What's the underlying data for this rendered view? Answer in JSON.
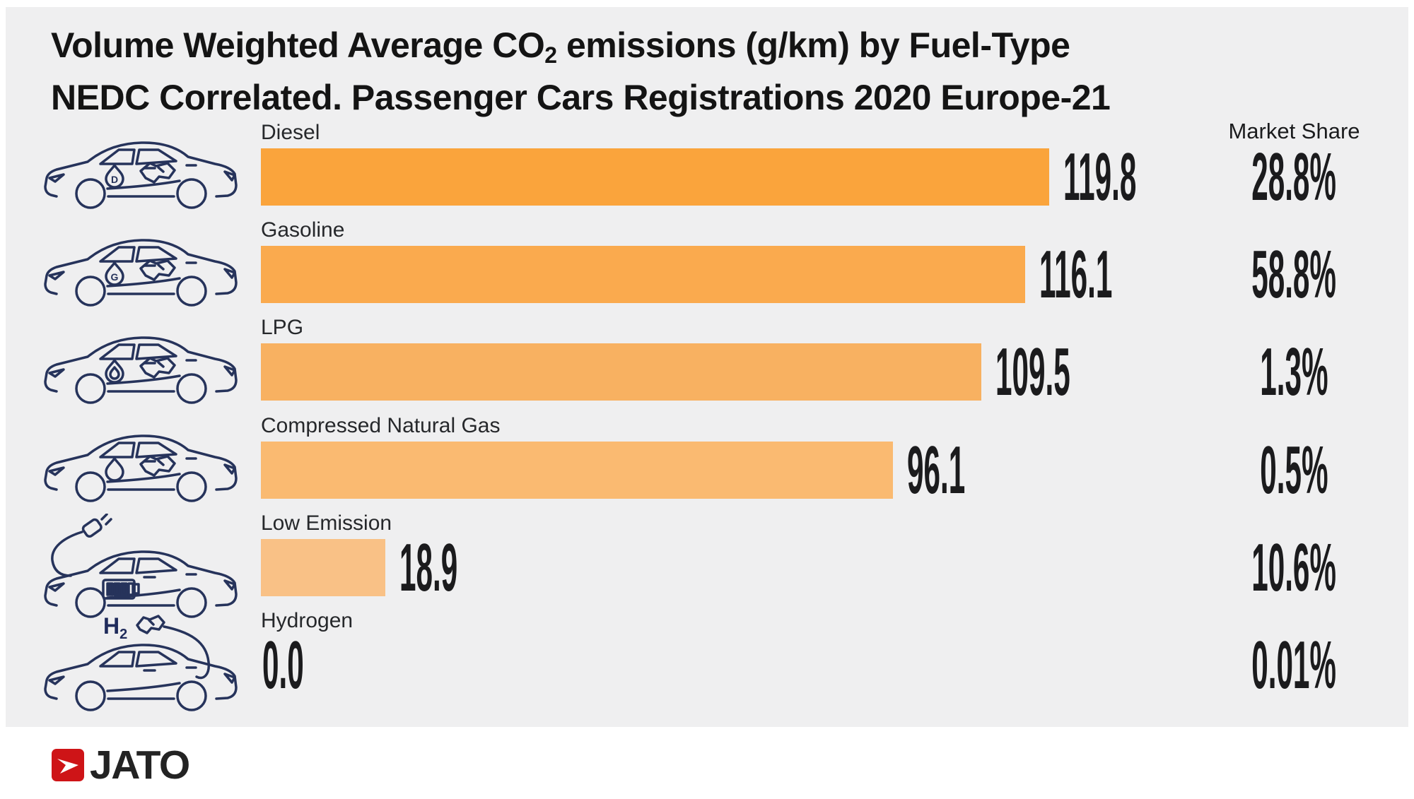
{
  "title": {
    "line1_pre": "Volume Weighted Average CO",
    "line1_sub": "2",
    "line1_post": " emissions (g/km) by Fuel-Type",
    "line2": "NEDC Correlated. Passenger Cars Registrations 2020 Europe-21"
  },
  "market_share_header": "Market Share",
  "chart_data": {
    "type": "bar",
    "orientation": "horizontal",
    "title": "Volume Weighted Average CO2 emissions (g/km) by Fuel-Type NEDC Correlated. Passenger Cars Registrations 2020 Europe-21",
    "categories": [
      "Diesel",
      "Gasoline",
      "LPG",
      "Compressed Natural Gas",
      "Low Emission",
      "Hydrogen"
    ],
    "series": [
      {
        "name": "CO2 emissions (g/km)",
        "values": [
          119.8,
          116.1,
          109.5,
          96.1,
          18.9,
          0.0
        ]
      },
      {
        "name": "Market Share (%)",
        "values": [
          28.8,
          58.8,
          1.3,
          0.5,
          10.6,
          0.01
        ]
      }
    ],
    "xlim": [
      0,
      119.8
    ],
    "grid": false,
    "legend": false,
    "bar_colors": [
      "#FAA43C",
      "#FAAA4E",
      "#F8B161",
      "#FABA71",
      "#F9C186",
      null
    ]
  },
  "rows": [
    {
      "label": "Diesel",
      "value_label": "119.8",
      "value": 119.8,
      "share_label": "28.8%",
      "color": "#FAA43C",
      "icon": "diesel-car-icon",
      "icon_variant": "fuel",
      "droplet_content": "D"
    },
    {
      "label": "Gasoline",
      "value_label": "116.1",
      "value": 116.1,
      "share_label": "58.8%",
      "color": "#FAAA4E",
      "icon": "gasoline-car-icon",
      "icon_variant": "fuel",
      "droplet_content": "G"
    },
    {
      "label": "LPG",
      "value_label": "109.5",
      "value": 109.5,
      "share_label": "1.3%",
      "color": "#F8B161",
      "icon": "lpg-car-icon",
      "icon_variant": "fuel",
      "droplet_content": "flame"
    },
    {
      "label": "Compressed Natural Gas",
      "value_label": "96.1",
      "value": 96.1,
      "share_label": "0.5%",
      "color": "#FABA71",
      "icon": "cng-car-icon",
      "icon_variant": "fuel",
      "droplet_content": ""
    },
    {
      "label": "Low Emission",
      "value_label": "18.9",
      "value": 18.9,
      "share_label": "10.6%",
      "color": "#F9C186",
      "icon": "electric-car-icon",
      "icon_variant": "electric",
      "droplet_content": ""
    },
    {
      "label": "Hydrogen",
      "value_label": "0.0",
      "value": 0.0,
      "share_label": "0.01%",
      "color": null,
      "icon": "hydrogen-car-icon",
      "icon_variant": "hydrogen",
      "droplet_content": "",
      "badge": "H2"
    }
  ],
  "footer": {
    "brand": "JATO"
  },
  "colors": {
    "panel_bg": "#EFEFF0",
    "page_bg": "#FFFFFF",
    "icon_stroke": "#26335B",
    "badge_text": "#1F2B5B",
    "number_text": "#1B1B1D",
    "label_text": "#26282B",
    "title_text": "#141414",
    "logo_red": "#CE1417",
    "brand_text": "#232323"
  }
}
